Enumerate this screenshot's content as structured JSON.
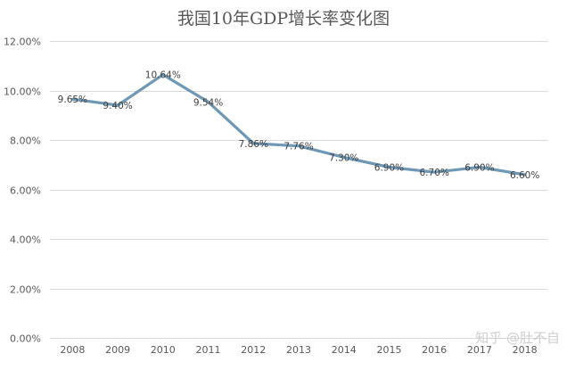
{
  "chart_data": {
    "type": "line",
    "title": "我国10年GDP增长率变化图",
    "categories": [
      "2008",
      "2009",
      "2010",
      "2011",
      "2012",
      "2013",
      "2014",
      "2015",
      "2016",
      "2017",
      "2018"
    ],
    "series": [
      {
        "values": [
          9.65,
          9.4,
          10.64,
          9.54,
          7.86,
          7.76,
          7.3,
          6.9,
          6.7,
          6.9,
          6.6
        ],
        "labels": [
          "9.65%",
          "9.40%",
          "10.64%",
          "9.54%",
          "7.86%",
          "7.76%",
          "7.30%",
          "6.90%",
          "6.70%",
          "6.90%",
          "6.60%"
        ],
        "color": "#6f98b6"
      }
    ],
    "yticks": [
      0,
      2,
      4,
      6,
      8,
      10,
      12
    ],
    "ytick_labels": [
      "0.00%",
      "2.00%",
      "4.00%",
      "6.00%",
      "8.00%",
      "10.00%",
      "12.00%"
    ],
    "ylim": [
      0,
      12
    ],
    "grid": true,
    "legend": "none"
  },
  "watermark": "知乎 @肚不自"
}
